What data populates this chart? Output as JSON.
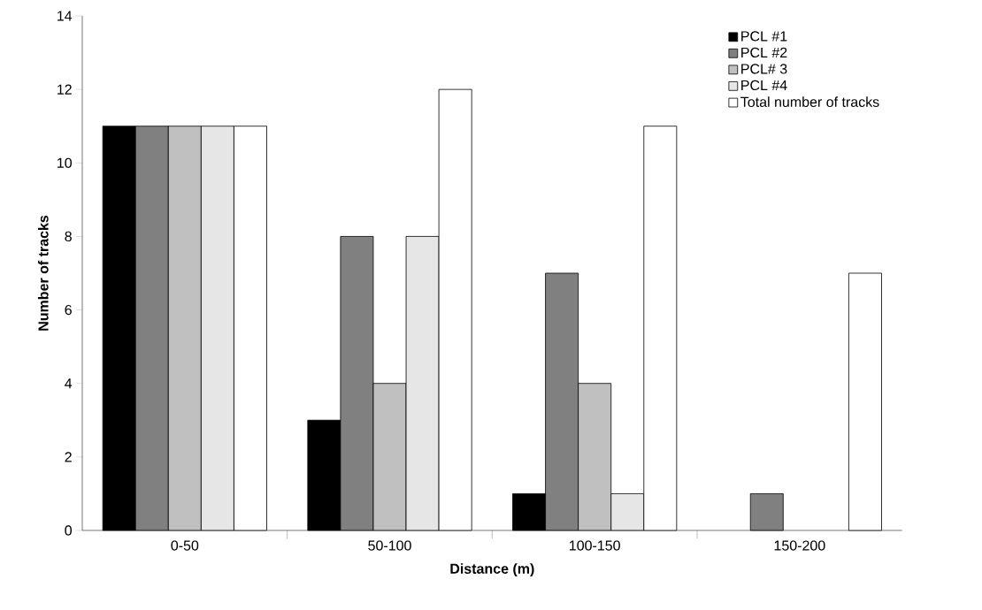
{
  "chart_data": {
    "type": "bar",
    "xlabel": "Distance (m)",
    "ylabel": "Number of tracks",
    "categories": [
      "0-50",
      "50-100",
      "100-150",
      "150-200"
    ],
    "series": [
      {
        "name": "PCL #1",
        "color": "#000000",
        "values": [
          11,
          3,
          1,
          0
        ]
      },
      {
        "name": "PCL #2",
        "color": "#808080",
        "values": [
          11,
          8,
          7,
          1
        ]
      },
      {
        "name": "PCL# 3",
        "color": "#c0c0c0",
        "values": [
          11,
          4,
          4,
          0
        ]
      },
      {
        "name": "PCL #4",
        "color": "#e6e6e6",
        "values": [
          11,
          8,
          1,
          0
        ]
      },
      {
        "name": "Total number of tracks",
        "color": "#ffffff",
        "values": [
          11,
          12,
          11,
          7
        ]
      }
    ],
    "ylim": [
      0,
      14
    ],
    "yticks": [
      0,
      2,
      4,
      6,
      8,
      10,
      12,
      14
    ],
    "grid": false,
    "legend": "top right"
  }
}
